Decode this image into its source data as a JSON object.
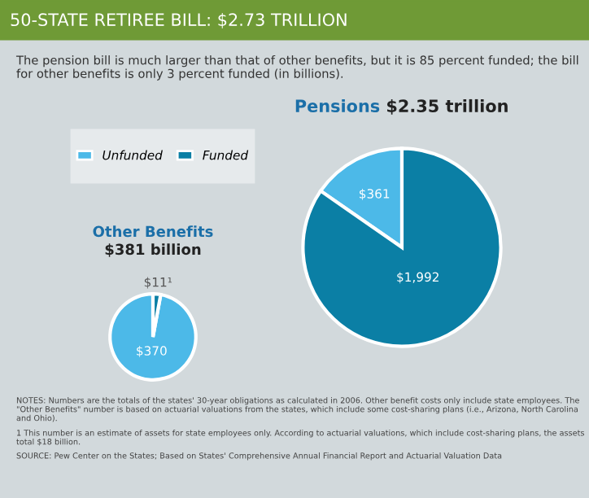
{
  "chart_data": [
    {
      "type": "other",
      "title": "50-STATE RETIREE BILL: $2.73 TRILLION",
      "subtitle": "The pension bill is much larger than that of other benefits, but it is 85 percent funded; the bill for other benefits is only 3 percent funded (in billions).",
      "annotations": [
        "NOTES: Numbers are the totals of the states' 30-year obligations as calculated in 2006. Other benefit costs only include state employees. The \"Other Benefits\" number is based on actuarial valuations from the states, which include some cost-sharing plans (i.e., Arizona, North Carolina and Ohio).",
        "1 This number is an estimate of assets for state employees only. According to actuarial valuations, which include cost-sharing plans, the assets total $18 billion.",
        "SOURCE: Pew Center on the States; Based on States' Comprehensive Annual Financial Report and Actuarial Valuation Data"
      ]
    },
    {
      "type": "pie",
      "title": "Other Benefits",
      "subtitle": "$381 billion",
      "categories": [
        "Unfunded",
        "Funded"
      ],
      "values": [
        370,
        11
      ],
      "colors": [
        "#4cb9e8",
        "#0b7fa5"
      ],
      "value_labels": [
        "$370",
        "$11¹"
      ],
      "legend": "top"
    },
    {
      "type": "pie",
      "title": "Pensions",
      "subtitle": "$2.35 trillion",
      "values": [
        361,
        1992
      ],
      "colors": [
        "#4cb9e8",
        "#0b7fa5"
      ],
      "value_labels": [
        "$361",
        "$1,992"
      ]
    }
  ]
}
